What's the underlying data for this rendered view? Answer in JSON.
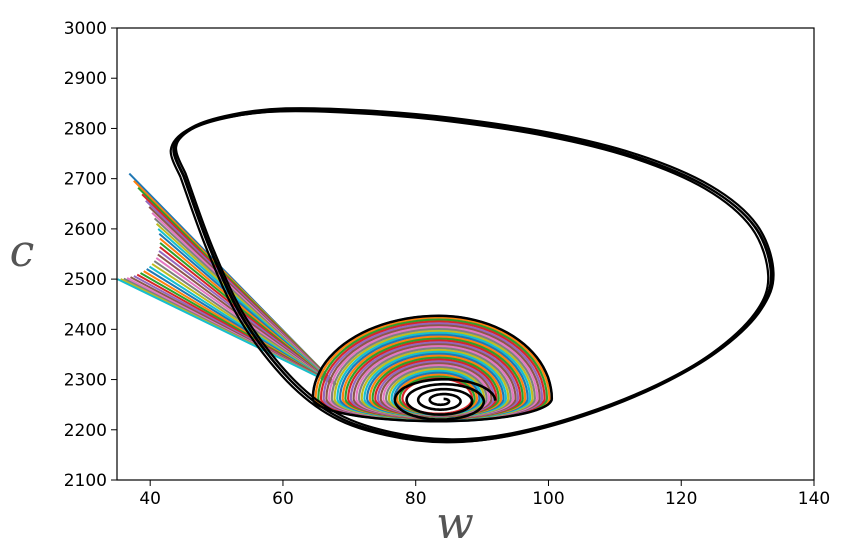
{
  "chart_data": {
    "type": "line",
    "title": "",
    "xlabel": "w",
    "ylabel": "c",
    "xlim": [
      35,
      140
    ],
    "ylim": [
      2100,
      3000
    ],
    "xticks": [
      40,
      60,
      80,
      100,
      120,
      140
    ],
    "yticks": [
      2100,
      2200,
      2300,
      2400,
      2500,
      2600,
      2700,
      2800,
      2900,
      3000
    ],
    "grid": false,
    "legend": "none",
    "fixed_point": {
      "x": 84,
      "y": 2258
    },
    "large_limit_cycle": {
      "color": "#000000",
      "points": [
        [
          45,
          2705
        ],
        [
          43.5,
          2760
        ],
        [
          46,
          2800
        ],
        [
          52,
          2825
        ],
        [
          60,
          2837
        ],
        [
          72,
          2833
        ],
        [
          85,
          2818
        ],
        [
          100,
          2788
        ],
        [
          113,
          2745
        ],
        [
          124,
          2683
        ],
        [
          131,
          2605
        ],
        [
          133.5,
          2510
        ],
        [
          131.5,
          2435
        ],
        [
          125,
          2355
        ],
        [
          116,
          2287
        ],
        [
          105,
          2229
        ],
        [
          94,
          2190
        ],
        [
          85,
          2178
        ],
        [
          76,
          2192
        ],
        [
          68,
          2228
        ],
        [
          61,
          2300
        ],
        [
          54,
          2420
        ],
        [
          49,
          2560
        ],
        [
          45,
          2705
        ]
      ]
    },
    "inner_band": {
      "center_x": 83.5,
      "center_y": 2262,
      "outer": {
        "rx_right": 17,
        "rx_left": 19,
        "ry_top": 165,
        "ry_bottom": 45
      },
      "inner": {
        "rx_right": 5,
        "rx_left": 5.5,
        "ry_top": 40,
        "ry_bottom": 30
      },
      "rings": 34,
      "colors": [
        "#1f77b4",
        "#ff7f0e",
        "#2ca02c",
        "#d62728",
        "#9467bd",
        "#8c564b",
        "#e377c2",
        "#7f7f7f",
        "#bcbd22",
        "#17becf"
      ]
    },
    "transients": {
      "count": 30,
      "convergence_point": {
        "x": 68,
        "y": 2290
      },
      "start_x_range": [
        33,
        44
      ],
      "start_y_range": [
        2500,
        2710
      ]
    },
    "inner_spiral": {
      "color": "#000000",
      "turns": 4.2,
      "max_rx": 8,
      "max_ry": 45
    }
  }
}
